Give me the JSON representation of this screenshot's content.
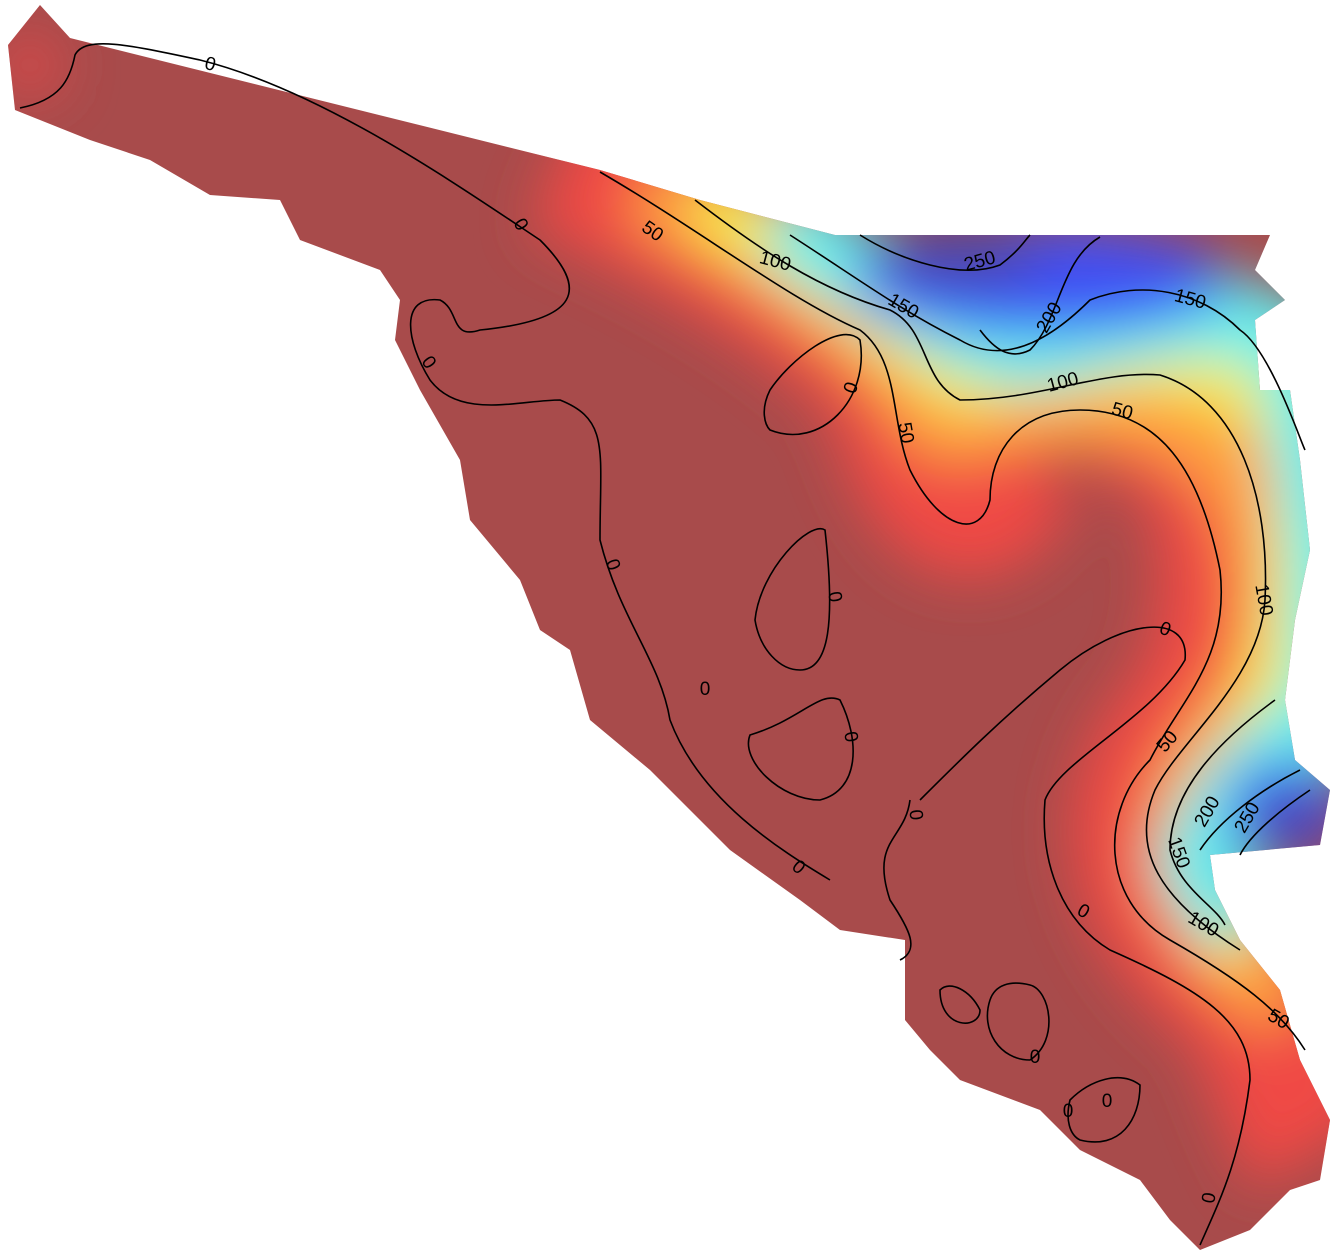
{
  "map": {
    "contour_labels": [
      0,
      0,
      0,
      0,
      0,
      0,
      0,
      0,
      0,
      0,
      0,
      0,
      0,
      0,
      0,
      0,
      50,
      50,
      50,
      50,
      50,
      100,
      100,
      100,
      100,
      150,
      150,
      150,
      200,
      200,
      250,
      250
    ]
  }
}
